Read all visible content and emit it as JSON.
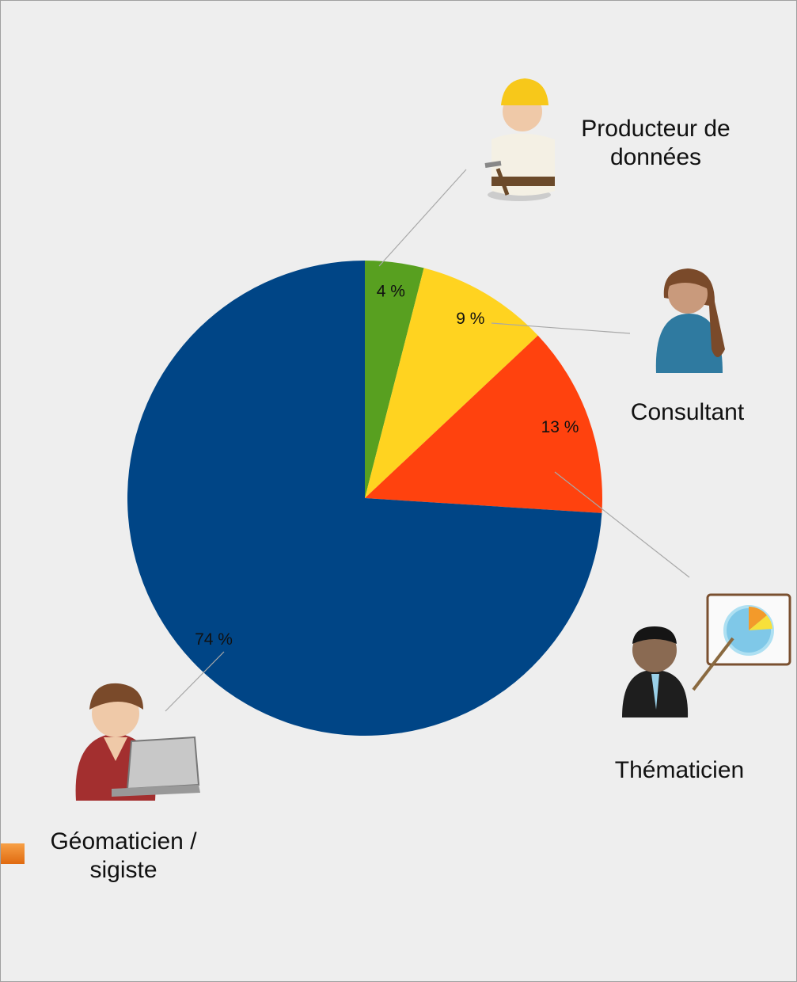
{
  "chart_data": {
    "type": "pie",
    "categories": [
      "Producteur de données",
      "Consultant",
      "Thématicien",
      "Géomaticien / sigiste"
    ],
    "values": [
      4,
      9,
      13,
      74
    ],
    "value_labels": [
      "4 %",
      "9 %",
      "13 %",
      "74 %"
    ],
    "colors": [
      "#58a020",
      "#ffd320",
      "#ff420e",
      "#004586"
    ]
  }
}
